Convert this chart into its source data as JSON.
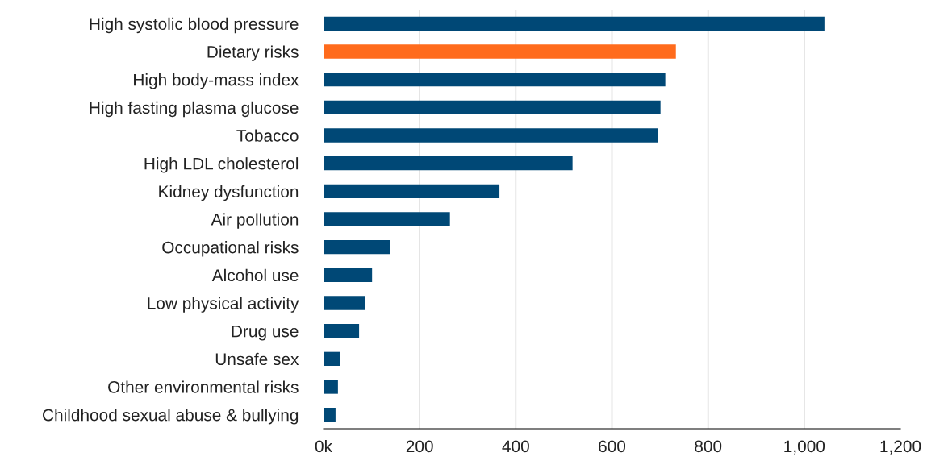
{
  "chart_data": {
    "type": "bar",
    "orientation": "horizontal",
    "categories": [
      "High systolic blood pressure",
      "Dietary risks",
      "High body-mass index",
      "High fasting plasma glucose",
      "Tobacco",
      "High LDL cholesterol",
      "Kidney dysfunction",
      "Air pollution",
      "Occupational risks",
      "Alcohol use",
      "Low physical activity",
      "Drug use",
      "Unsafe sex",
      "Other environmental risks",
      "Childhood sexual abuse & bullying"
    ],
    "values": [
      1042,
      733,
      711,
      701,
      695,
      518,
      366,
      263,
      139,
      101,
      86,
      74,
      34,
      30,
      25
    ],
    "colors": [
      "#004876",
      "#ff6b1c",
      "#004876",
      "#004876",
      "#004876",
      "#004876",
      "#004876",
      "#004876",
      "#004876",
      "#004876",
      "#004876",
      "#004876",
      "#004876",
      "#004876",
      "#004876"
    ],
    "xlim": [
      0,
      1200
    ],
    "xticks": [
      {
        "value": 0,
        "label": "0k"
      },
      200,
      400,
      600,
      800,
      {
        "value": 1000,
        "label": "1,000"
      },
      {
        "value": 1200,
        "label": "1,200"
      }
    ],
    "grid": "x"
  }
}
